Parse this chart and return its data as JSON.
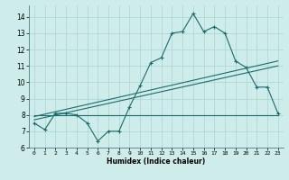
{
  "x": [
    0,
    1,
    2,
    3,
    4,
    5,
    6,
    7,
    8,
    9,
    10,
    11,
    12,
    13,
    14,
    15,
    16,
    17,
    18,
    19,
    20,
    21,
    22,
    23
  ],
  "y_main": [
    7.5,
    7.1,
    8.1,
    8.1,
    8.0,
    7.5,
    6.4,
    7.0,
    7.0,
    8.5,
    9.8,
    11.2,
    11.5,
    13.0,
    13.1,
    14.2,
    13.1,
    13.4,
    13.0,
    11.3,
    10.9,
    9.7,
    9.7,
    8.1
  ],
  "line1_x": [
    0,
    23
  ],
  "line1_y": [
    7.9,
    11.3
  ],
  "line2_x": [
    0,
    23
  ],
  "line2_y": [
    7.7,
    11.0
  ],
  "line3_x": [
    0,
    23
  ],
  "line3_y": [
    8.0,
    8.0
  ],
  "bg_color": "#cdecea",
  "grid_color": "#b0d8d5",
  "line_color": "#1a6b6b",
  "xlabel": "Humidex (Indice chaleur)",
  "xlim": [
    -0.5,
    23.5
  ],
  "ylim": [
    6,
    14.7
  ],
  "yticks": [
    6,
    7,
    8,
    9,
    10,
    11,
    12,
    13,
    14
  ],
  "xticks": [
    0,
    1,
    2,
    3,
    4,
    5,
    6,
    7,
    8,
    9,
    10,
    11,
    12,
    13,
    14,
    15,
    16,
    17,
    18,
    19,
    20,
    21,
    22,
    23
  ]
}
